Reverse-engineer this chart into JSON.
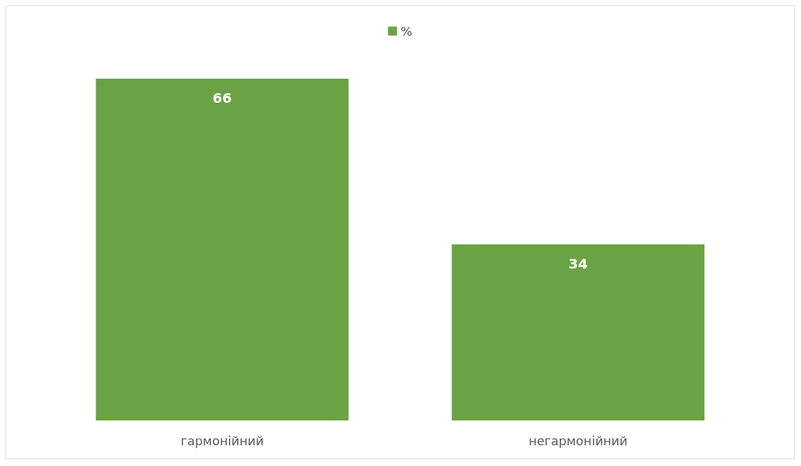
{
  "chart_data": {
    "type": "bar",
    "categories": [
      "гармонійний",
      "негармонійний"
    ],
    "series": [
      {
        "name": "%",
        "color": "#6aa343",
        "values": [
          66,
          34
        ]
      }
    ],
    "data_labels": true,
    "legend": "top"
  }
}
